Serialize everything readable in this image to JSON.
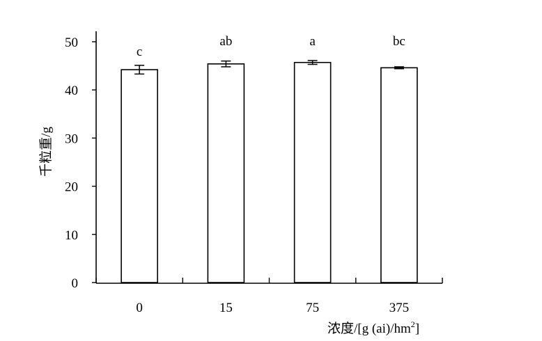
{
  "chart_data": {
    "type": "bar",
    "categories": [
      "0",
      "15",
      "75",
      "375"
    ],
    "values": [
      44.2,
      45.4,
      45.7,
      44.6
    ],
    "errors": [
      0.9,
      0.6,
      0.4,
      0.2
    ],
    "significance_letters": [
      "c",
      "ab",
      "a",
      "bc"
    ],
    "xlabel_text": "浓度/[g (ai)/hm",
    "xlabel_superscript": "2",
    "xlabel_close": "]",
    "ylabel": "千粒重/g",
    "ylim": [
      0,
      50
    ],
    "yticks": [
      "0",
      "10",
      "20",
      "30",
      "40",
      "50"
    ],
    "grid": false,
    "bar_fill": "#ffffff",
    "bar_stroke": "#000000"
  }
}
